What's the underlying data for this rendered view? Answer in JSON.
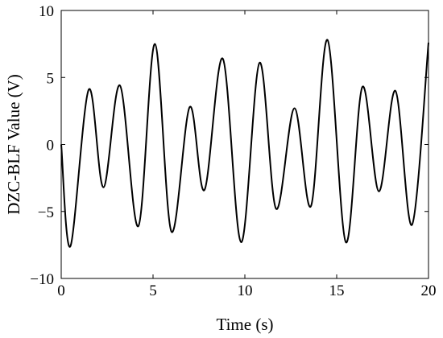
{
  "chart_data": {
    "type": "line",
    "title": "",
    "xlabel": "Time (s)",
    "ylabel": "DZC-BLF Value (V)",
    "xlim": [
      0,
      20
    ],
    "ylim": [
      -10,
      10
    ],
    "grid": false,
    "legend": "none",
    "xticks": [
      0,
      5,
      10,
      15,
      20
    ],
    "xtick_labels": [
      "0",
      "5",
      "10",
      "15",
      "20"
    ],
    "yticks": [
      -10,
      -5,
      0,
      5,
      10
    ],
    "ytick_labels": [
      "−10",
      "−5",
      "0",
      "5",
      "10"
    ],
    "line_color": "#000000",
    "series": [
      {
        "x": [
          0,
          0.5,
          1.5,
          2.3,
          3.2,
          4.2,
          5.1,
          6.0,
          7.0,
          7.8,
          8.8,
          9.8,
          10.8,
          11.7,
          12.7,
          13.6,
          14.5,
          15.5,
          16.4,
          17.3,
          18.2,
          19.1,
          20.0
        ],
        "y": [
          0,
          -7.6,
          4.1,
          -3.2,
          4.4,
          -6.1,
          7.5,
          -6.5,
          2.8,
          -3.4,
          6.4,
          -7.3,
          6.1,
          -4.8,
          2.7,
          -4.6,
          7.8,
          -7.3,
          4.3,
          -3.5,
          4.0,
          -6.0,
          7.6
        ]
      }
    ]
  }
}
